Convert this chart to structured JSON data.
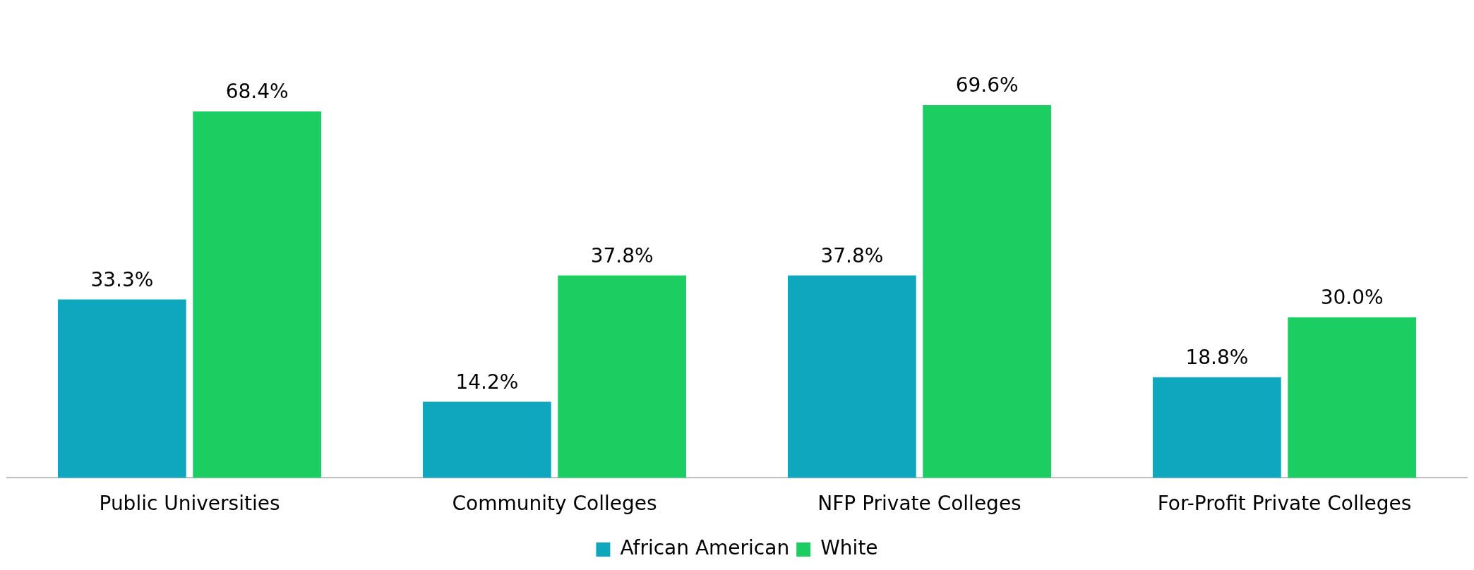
{
  "chart_data": {
    "type": "bar",
    "categories": [
      "Public Universities",
      "Community Colleges",
      "NFP Private Colleges",
      "For-Profit Private Colleges"
    ],
    "series": [
      {
        "name": "African American",
        "color": "#0fa7bd",
        "values": [
          33.3,
          14.2,
          37.8,
          18.8
        ],
        "value_labels": [
          "33.3%",
          "14.2%",
          "37.8%",
          "18.8%"
        ]
      },
      {
        "name": "White",
        "color": "#1ccd62",
        "values": [
          68.4,
          37.8,
          69.6,
          30.0
        ],
        "value_labels": [
          "68.4%",
          "37.8%",
          "69.6%",
          "30.0%"
        ]
      }
    ],
    "legend": "bottom",
    "grid": false
  }
}
